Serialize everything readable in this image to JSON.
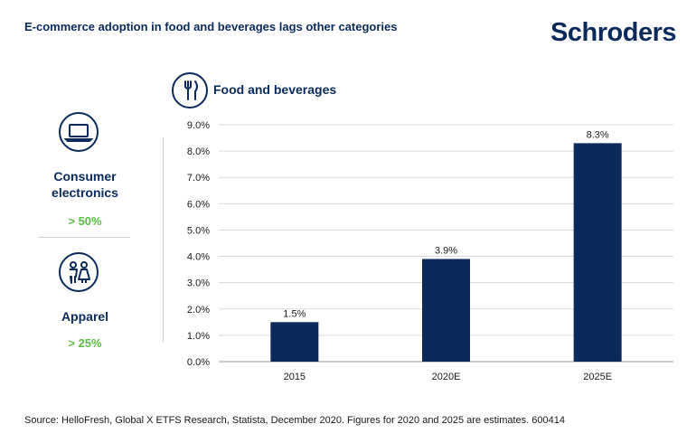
{
  "header": {
    "title": "E-commerce adoption in food and beverages lags other categories",
    "brand": "Schroders"
  },
  "panel": {
    "food_label": "Food and beverages",
    "categories": [
      {
        "name_line1": "Consumer",
        "name_line2": "electronics",
        "value": "> 50%",
        "icon": "laptop-icon"
      },
      {
        "name_line1": "Apparel",
        "name_line2": "",
        "value": "> 25%",
        "icon": "apparel-icon"
      }
    ],
    "food_icon": "cutlery-icon"
  },
  "colors": {
    "bar": "#0b2a5b",
    "accent_green": "#5dbb46",
    "brand_navy": "#0b2a5b",
    "grid": "#d9d9d9"
  },
  "chart_data": {
    "type": "bar",
    "title": "",
    "xlabel": "",
    "ylabel": "",
    "categories": [
      "2015",
      "2020E",
      "2025E"
    ],
    "values": [
      1.5,
      3.9,
      8.3
    ],
    "data_labels": [
      "1.5%",
      "3.9%",
      "8.3%"
    ],
    "ylim": [
      0,
      9
    ],
    "yticks": [
      0,
      1,
      2,
      3,
      4,
      5,
      6,
      7,
      8,
      9
    ],
    "ytick_labels": [
      "0.0%",
      "1.0%",
      "2.0%",
      "3.0%",
      "4.0%",
      "5.0%",
      "6.0%",
      "7.0%",
      "8.0%",
      "9.0%"
    ],
    "grid": true,
    "legend": "none"
  },
  "footer": {
    "source": "Source: HelloFresh, Global X ETFS Research, Statista, December 2020. Figures for 2020 and 2025 are estimates. 600414"
  }
}
